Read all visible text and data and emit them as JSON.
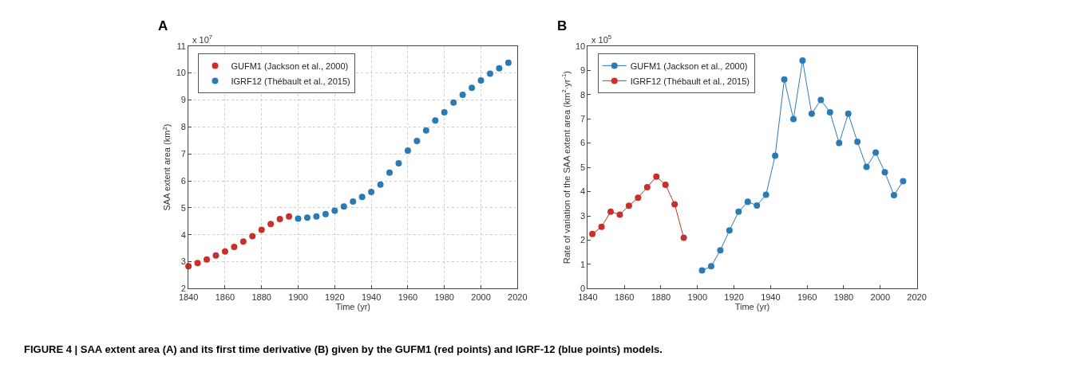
{
  "chart_data": [
    {
      "type": "scatter",
      "title": "A",
      "xlabel": "Time (yr)",
      "ylabel": "SAA extent area (km$^{2}$)",
      "annotations": [
        "x 10$^{7}$",
        "FIGURE 4 | SAA extent area (A) and its first time derivative (B) given by the GUFM1 (red points) and IGRF-12 (blue points) models."
      ],
      "x": [
        1840,
        1845,
        1850,
        1855,
        1860,
        1865,
        1870,
        1875,
        1880,
        1885,
        1890,
        1895
      ],
      "series": [
        {
          "name": "GUFM1 (Jackson et al., 2000)",
          "color": "#c8312a",
          "values": [
            2.83,
            2.95,
            3.08,
            3.23,
            3.38,
            3.55,
            3.75,
            3.95,
            4.18,
            4.4,
            4.58,
            4.68
          ]
        },
        {
          "name": "IGRF12 (Thébault et al., 2015)",
          "color": "#2a7ab5",
          "x": [
            1900,
            1905,
            1910,
            1915,
            1920,
            1925,
            1930,
            1935,
            1940,
            1945,
            1950,
            1955,
            1960,
            1965,
            1970,
            1975,
            1980,
            1985,
            1990,
            1995,
            2000,
            2005,
            2010,
            2015
          ],
          "values": [
            4.6,
            4.63,
            4.68,
            4.77,
            4.89,
            5.05,
            5.23,
            5.4,
            5.59,
            5.86,
            6.3,
            6.65,
            7.12,
            7.48,
            7.87,
            8.24,
            8.54,
            8.9,
            9.19,
            9.45,
            9.72,
            9.97,
            10.17,
            10.38
          ]
        }
      ],
      "xlim": [
        1840,
        2020
      ],
      "xticks": [
        1840,
        1860,
        1880,
        1900,
        1920,
        1940,
        1960,
        1980,
        2000,
        2020
      ],
      "ylim": [
        2,
        11
      ],
      "yticks": [
        2,
        3,
        4,
        5,
        6,
        7,
        8,
        9,
        10,
        11
      ],
      "grid": true,
      "legend": "top left",
      "marker": "circle"
    },
    {
      "type": "line",
      "title": "B",
      "xlabel": "Time (yr)",
      "ylabel": "Rate of variation of the SAA extent area (km$^{2}$·yr$^{-1}$)",
      "annotations": [
        "x 10$^{5}$"
      ],
      "x": [
        1902.5,
        1907.5,
        1912.5,
        1917.5,
        1922.5,
        1927.5,
        1932.5,
        1937.5,
        1942.5,
        1947.5,
        1952.5,
        1957.5,
        1962.5,
        1967.5,
        1972.5,
        1977.5,
        1982.5,
        1987.5,
        1992.5,
        1997.5,
        2002.5,
        2007.5,
        2012.5
      ],
      "series": [
        {
          "name": "GUFM1 (Jackson et al., 2000)",
          "color": "#2a7ab5",
          "values": [
            0.75,
            0.92,
            1.58,
            2.4,
            3.17,
            3.58,
            3.43,
            3.87,
            5.48,
            8.62,
            6.99,
            9.4,
            7.21,
            7.78,
            7.27,
            6.0,
            7.21,
            6.05,
            5.02,
            5.61,
            4.8,
            3.85,
            4.43
          ]
        },
        {
          "name": "IGRF12 (Thébault et al., 2015)",
          "color": "#c8312a",
          "x": [
            1842.5,
            1847.5,
            1852.5,
            1857.5,
            1862.5,
            1867.5,
            1872.5,
            1877.5,
            1882.5,
            1887.5,
            1892.5
          ],
          "values": [
            2.25,
            2.55,
            3.17,
            3.05,
            3.42,
            3.75,
            4.18,
            4.62,
            4.28,
            3.48,
            2.1
          ]
        }
      ],
      "xlim": [
        1840,
        2020
      ],
      "xticks": [
        1840,
        1860,
        1880,
        1900,
        1920,
        1940,
        1960,
        1980,
        2000,
        2020
      ],
      "ylim": [
        0,
        10
      ],
      "yticks": [
        0,
        1,
        2,
        3,
        4,
        5,
        6,
        7,
        8,
        9,
        10
      ],
      "legend": "top left",
      "marker": "circle",
      "line_style": "solid"
    }
  ]
}
